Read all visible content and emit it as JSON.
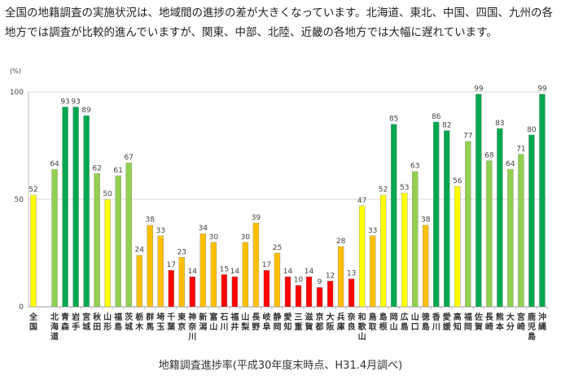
{
  "intro_text": "全国の地籍調査の実施状況は、地域間の進捗の差が大きくなっています。北海道、東北、中国、四国、九州の各地方では調査が比較的進んでいますが、関東、中部、北陸、近畿の各地方では大幅に遅れています。",
  "chart_data": {
    "type": "bar",
    "title": "",
    "caption": "地籍調査進捗率(平成30年度末時点、H31.4月調べ)",
    "ylabel": "(%)",
    "xlabel": "",
    "ylim": [
      0,
      100
    ],
    "yticks": [
      "0",
      "50",
      "100"
    ],
    "grid": true,
    "categories": [
      "全国",
      "北海道",
      "青森",
      "岩手",
      "宮城",
      "秋田",
      "山形",
      "福島",
      "茨城",
      "栃木",
      "群馬",
      "埼玉",
      "千葉",
      "東京",
      "神奈川",
      "新潟",
      "富山",
      "石川",
      "福井",
      "山梨",
      "長野",
      "岐阜",
      "静岡",
      "愛知",
      "三重",
      "滋賀",
      "京都",
      "大阪",
      "兵庫",
      "奈良",
      "和歌山",
      "鳥取",
      "島根",
      "岡山",
      "広島",
      "山口",
      "徳島",
      "香川",
      "愛媛",
      "高知",
      "福岡",
      "佐賀",
      "長崎",
      "熊本",
      "大分",
      "宮崎",
      "鹿児島",
      "沖縄"
    ],
    "values": [
      52,
      64,
      93,
      93,
      89,
      62,
      50,
      61,
      67,
      24,
      38,
      33,
      17,
      23,
      14,
      34,
      30,
      15,
      14,
      30,
      39,
      17,
      25,
      14,
      10,
      14,
      9,
      12,
      28,
      13,
      47,
      33,
      52,
      85,
      53,
      63,
      38,
      86,
      82,
      56,
      77,
      99,
      68,
      83,
      64,
      71,
      80,
      99
    ],
    "color_bands": [
      {
        "min": 80,
        "color": "#00a84f"
      },
      {
        "min": 60,
        "color": "#92d050"
      },
      {
        "min": 40,
        "color": "#ffff00"
      },
      {
        "min": 20,
        "color": "#ffc000"
      },
      {
        "min": 0,
        "color": "#ff0000"
      }
    ]
  }
}
